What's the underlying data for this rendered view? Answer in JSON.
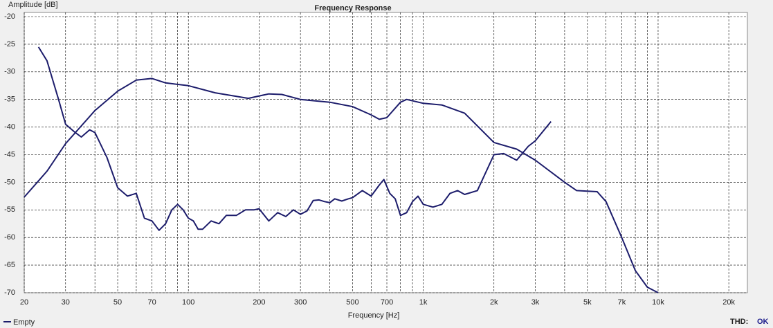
{
  "chart_data": {
    "type": "line",
    "title": "Frequency Response",
    "x_label": "Frequency [Hz]",
    "y_label": "Amplitude [dB]",
    "xscale": "log",
    "xlim": [
      20,
      24000
    ],
    "ylim": [
      -70,
      -20
    ],
    "grid": true,
    "xticks": [
      20,
      30,
      50,
      70,
      100,
      200,
      300,
      500,
      700,
      {
        "value": 1000,
        "label": "1k"
      },
      {
        "value": 2000,
        "label": "2k"
      },
      {
        "value": 3000,
        "label": "3k"
      },
      {
        "value": 5000,
        "label": "5k"
      },
      {
        "value": 7000,
        "label": "7k"
      },
      {
        "value": 10000,
        "label": "10k"
      },
      {
        "value": 20000,
        "label": "20k"
      }
    ],
    "xminorticks": [
      40,
      60,
      80,
      90,
      400,
      600,
      800,
      900,
      4000,
      6000,
      8000,
      9000
    ],
    "yticks": [
      -20,
      -25,
      -30,
      -35,
      -40,
      -45,
      -50,
      -55,
      -60,
      -65,
      -70
    ],
    "series": [
      {
        "name": "Empty",
        "color": "#1c1c6b",
        "x": [
          20,
          25,
          30,
          40,
          50,
          60,
          70,
          80,
          100,
          130,
          180,
          220,
          250,
          300,
          400,
          500,
          600,
          650,
          700,
          800,
          850,
          1000,
          1200,
          1500,
          2000,
          2500,
          3000,
          4000,
          4500,
          5000,
          5500,
          6000,
          7000,
          8000,
          9000,
          10000
        ],
        "values": [
          -52.7,
          -48,
          -43,
          -37,
          -33.5,
          -31.5,
          -31.2,
          -32,
          -32.5,
          -33.8,
          -34.8,
          -34,
          -34.1,
          -35,
          -35.5,
          -36.3,
          -37.8,
          -38.6,
          -38.3,
          -35.5,
          -35,
          -35.7,
          -36,
          -37.5,
          -42.8,
          -44,
          -46,
          -50,
          -51.5,
          -51.6,
          -51.7,
          -53.5,
          -60,
          -66,
          -69,
          -70
        ]
      },
      {
        "color": "#1c1c6b",
        "x": [
          23,
          25,
          28,
          30,
          33,
          35,
          38,
          40,
          45,
          50,
          55,
          60,
          65,
          70,
          75,
          80,
          85,
          90,
          95,
          100,
          105,
          110,
          115,
          125,
          135,
          145,
          160,
          175,
          190,
          200,
          220,
          240,
          260,
          280,
          300,
          320,
          340,
          360,
          380,
          400,
          420,
          450,
          480,
          500,
          550,
          600,
          650,
          680,
          720,
          760,
          800,
          850,
          900,
          950,
          1000,
          1100,
          1200,
          1300,
          1400,
          1500,
          1700,
          2000,
          2200,
          2500,
          2800,
          3000,
          3500
        ],
        "values": [
          -25.5,
          -28,
          -35,
          -39.5,
          -41,
          -41.8,
          -40.5,
          -41,
          -45.5,
          -51,
          -52.5,
          -52,
          -56.5,
          -57,
          -58.7,
          -57.5,
          -55,
          -54,
          -55,
          -56.5,
          -57,
          -58.5,
          -58.5,
          -57,
          -57.5,
          -56,
          -56,
          -55,
          -55,
          -54.8,
          -57,
          -55.5,
          -56.2,
          -55,
          -55.8,
          -55.2,
          -53.3,
          -53.2,
          -53.5,
          -53.7,
          -53,
          -53.4,
          -53,
          -52.8,
          -51.5,
          -52.5,
          -50.5,
          -49.5,
          -52,
          -53,
          -56,
          -55.5,
          -53.5,
          -52.5,
          -54,
          -54.5,
          -54,
          -52,
          -51.5,
          -52.2,
          -51.5,
          -45,
          -44.8,
          -46,
          -43.5,
          -42.5,
          -39
        ]
      }
    ],
    "status_label": "THD:",
    "status_value": "OK"
  }
}
